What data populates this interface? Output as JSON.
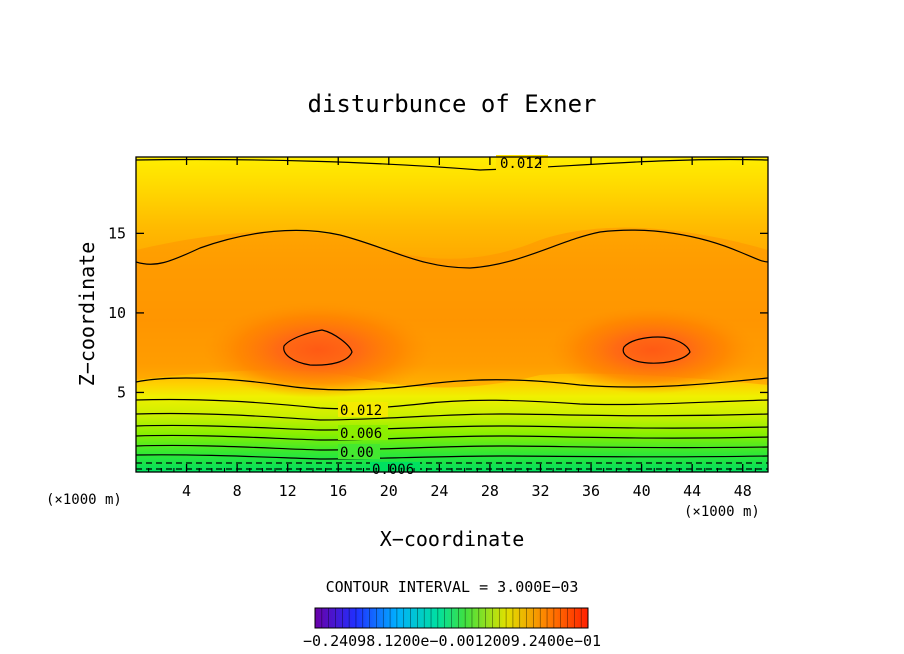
{
  "chart_data": {
    "type": "heatmap",
    "title": "disturbunce of Exner",
    "xlabel": "X−coordinate",
    "ylabel": "Z−coordinate",
    "x_unit": "(×1000 m)",
    "y_unit": "(×1000 m)",
    "xlim": [
      0,
      50
    ],
    "ylim": [
      0,
      19.8
    ],
    "x_ticks": [
      4,
      8,
      12,
      16,
      20,
      24,
      28,
      32,
      36,
      40,
      44,
      48
    ],
    "y_ticks": [
      5,
      10,
      15
    ],
    "contour_interval_text": "CONTOUR INTERVAL = 3.000E−03",
    "contour_labels": [
      "0.012",
      "0.012",
      "0.006",
      "0.00",
      "0.006"
    ],
    "colorbar_label": "−0.24098.1200e−0.0012009.2400e−01",
    "colorbar_range": [
      -0.024,
      0.024
    ],
    "grid": false,
    "field_description": "two pressure maxima near z = 8, x = 15 and x = 41; values decrease sharply toward the ground",
    "maxima": [
      {
        "x": 15,
        "z": 8
      },
      {
        "x": 41,
        "z": 8
      }
    ]
  }
}
